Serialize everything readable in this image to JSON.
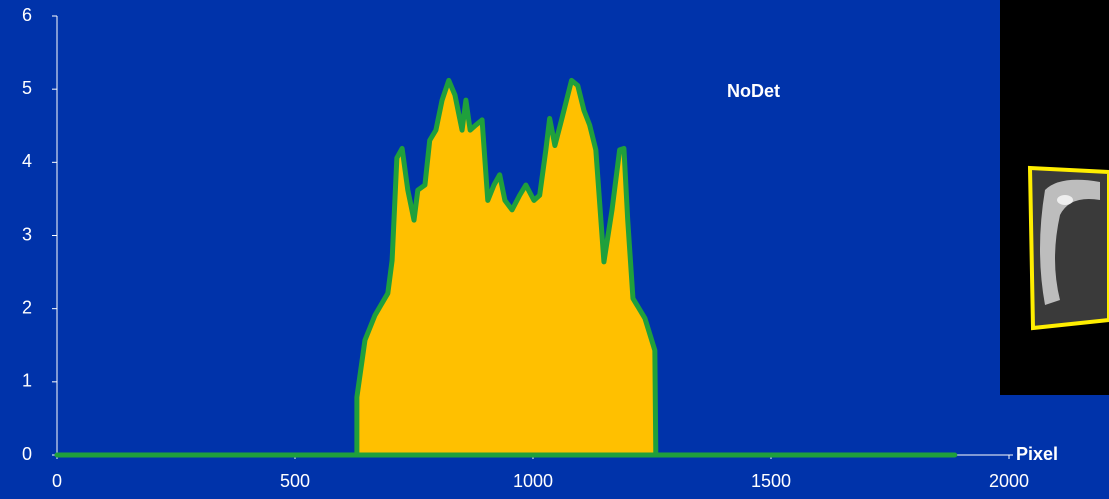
{
  "chart_data": {
    "type": "area",
    "annotation": "NoDet",
    "x_label": "Pixel",
    "x": [
      0,
      630,
      630,
      647,
      668,
      695,
      704,
      714,
      725,
      737,
      750,
      758,
      773,
      783,
      796,
      809,
      823,
      836,
      851,
      859,
      868,
      880,
      893,
      905,
      918,
      930,
      941,
      956,
      972,
      985,
      1002,
      1014,
      1027,
      1035,
      1046,
      1060,
      1081,
      1094,
      1107,
      1119,
      1132,
      1149,
      1166,
      1182,
      1191,
      1199,
      1210,
      1235,
      1256,
      1258,
      1886
    ],
    "values": [
      0,
      0,
      0.79,
      1.57,
      1.91,
      2.21,
      2.66,
      4.06,
      4.19,
      3.62,
      3.21,
      3.62,
      3.69,
      4.3,
      4.44,
      4.85,
      5.12,
      4.92,
      4.44,
      4.85,
      4.44,
      4.51,
      4.58,
      3.48,
      3.69,
      3.83,
      3.48,
      3.35,
      3.55,
      3.69,
      3.48,
      3.55,
      4.17,
      4.6,
      4.23,
      4.58,
      5.12,
      5.05,
      4.71,
      4.51,
      4.17,
      2.64,
      3.35,
      4.17,
      4.19,
      3.21,
      2.14,
      1.87,
      1.43,
      0,
      0
    ],
    "fill_color": "#ffc000",
    "line_color": "#1fa03c",
    "xlim": [
      0,
      2000
    ],
    "xticks": [
      0,
      500,
      1000,
      1500,
      2000
    ],
    "ylim": [
      0,
      6
    ],
    "yticks": [
      0,
      1,
      2,
      3,
      4,
      5,
      6
    ]
  }
}
